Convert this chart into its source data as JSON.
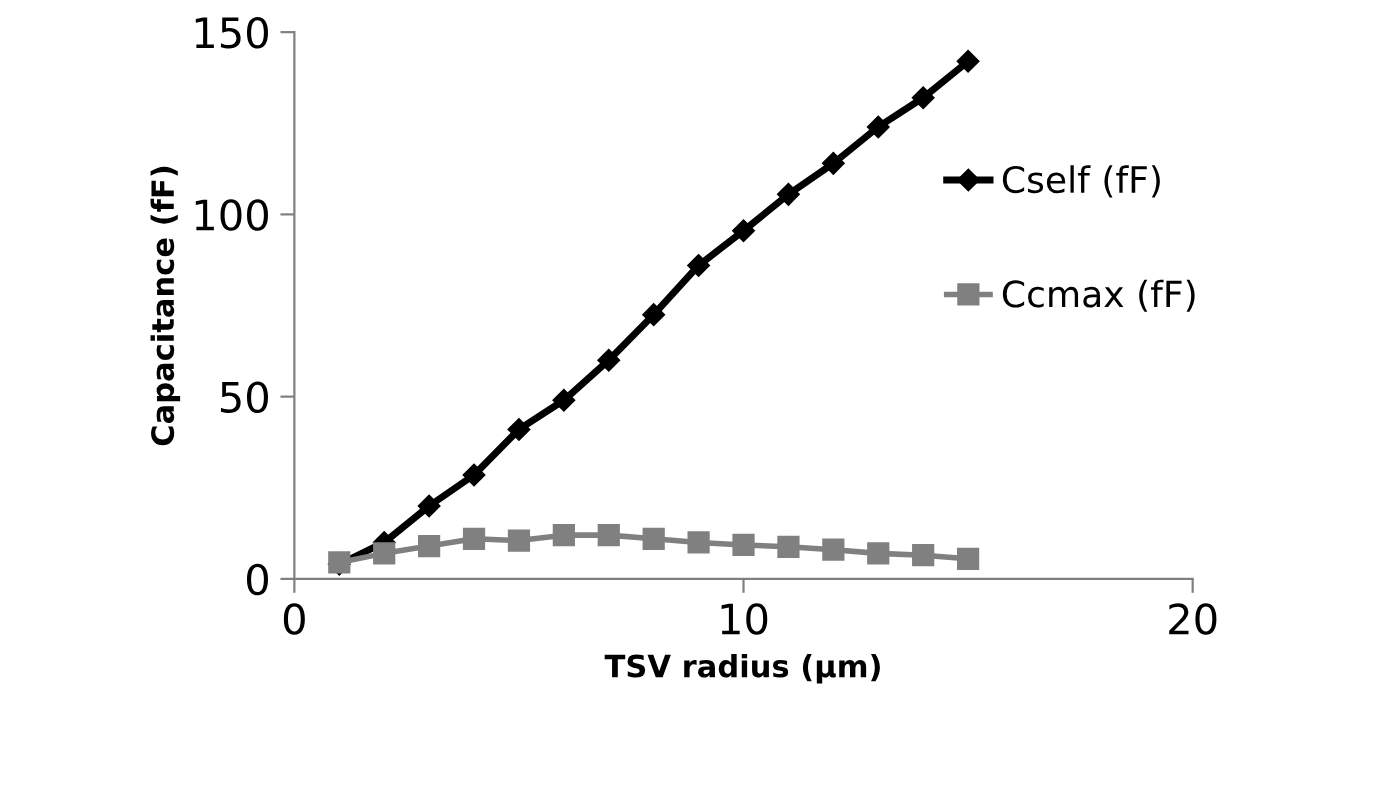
{
  "chart_data": {
    "type": "line",
    "xlabel": "TSV radius (µm)",
    "ylabel": "Capacitance (fF)",
    "xlim": [
      0,
      20
    ],
    "xticks": [
      0,
      10,
      20
    ],
    "ylim": [
      0,
      150
    ],
    "yticks": [
      0,
      50,
      100,
      150
    ],
    "grid": false,
    "legend": "right",
    "series": [
      {
        "name": "Cself (fF)",
        "color": "#000000",
        "marker": "diamond",
        "x": [
          1,
          2,
          3,
          4,
          5,
          6,
          7,
          8,
          9,
          10,
          11,
          12,
          13,
          14,
          15
        ],
        "values": [
          4,
          10,
          20,
          28.5,
          41,
          49,
          60,
          72.5,
          86,
          95.5,
          105.5,
          114,
          124,
          132,
          142
        ]
      },
      {
        "name": "Ccmax (fF)",
        "color": "#808080",
        "marker": "square",
        "x": [
          1,
          2,
          3,
          4,
          5,
          6,
          7,
          8,
          9,
          10,
          11,
          12,
          13,
          14,
          15
        ],
        "values": [
          4.5,
          7,
          9,
          11,
          10.5,
          12,
          12,
          11,
          10,
          9.3,
          8.8,
          8,
          7,
          6.5,
          5.5
        ]
      }
    ]
  }
}
